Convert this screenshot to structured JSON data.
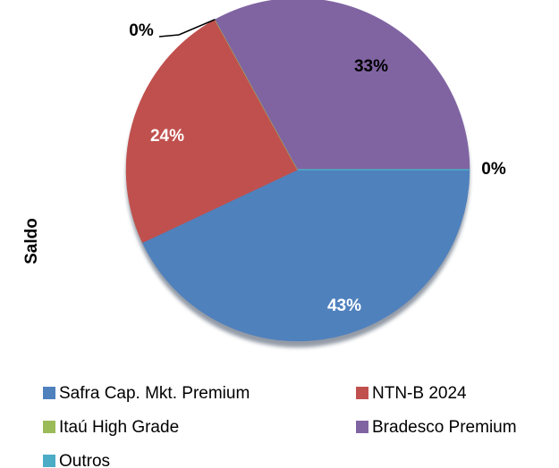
{
  "chart_data": {
    "type": "pie",
    "axis_label": "Saldo",
    "categories": [
      "Safra Cap. Mkt. Premium",
      "NTN-B 2024",
      "Itaú High Grade",
      "Bradesco Premium",
      "Outros"
    ],
    "values": [
      43,
      24,
      0,
      33,
      0
    ],
    "value_labels": [
      "43%",
      "24%",
      "0%",
      "33%",
      "0%"
    ],
    "colors": [
      "#4f81bd",
      "#c0504d",
      "#9bbb59",
      "#8064a2",
      "#4bacc6"
    ],
    "legend": "bottom"
  }
}
